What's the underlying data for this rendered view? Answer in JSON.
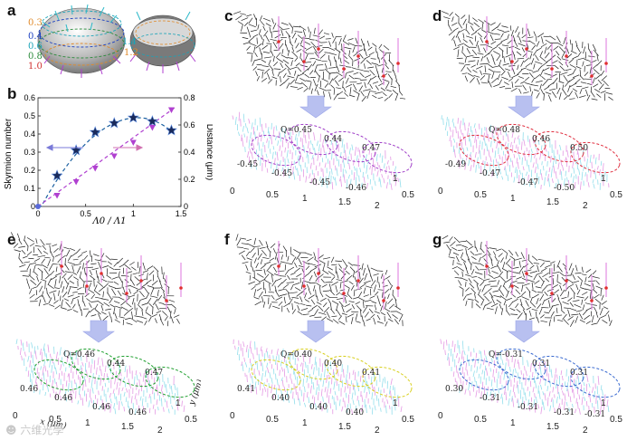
{
  "panels": {
    "a": "a",
    "b": "b",
    "c": "c",
    "d": "d",
    "e": "e",
    "f": "f",
    "g": "g"
  },
  "panel_a": {
    "ticks_left": [
      "0.3",
      "0.4",
      "0.6",
      "0.8",
      "1.0"
    ],
    "ticks_right": [
      "1.4",
      "1.2"
    ],
    "tick_colors": {
      "0.3": "#e08a2a",
      "0.4": "#1a3fc0",
      "0.6": "#1aa3b8",
      "0.8": "#2a8a3a",
      "1.0": "#d03030",
      "1.4": "#1aa3b8",
      "1.2": "#e08a2a"
    }
  },
  "chart_data": {
    "type": "line",
    "title": "",
    "xlabel": "Λ0 / Λ1",
    "ylabel": "Skyrmion number",
    "y2label": "Distance (μm)",
    "xlim": [
      0,
      1.5
    ],
    "ylim": [
      0,
      0.6
    ],
    "y2lim": [
      0,
      0.8
    ],
    "xticks": [
      "0",
      "0.5",
      "1",
      "1.5"
    ],
    "yticks": [
      "0",
      "0.1",
      "0.2",
      "0.3",
      "0.4",
      "0.5",
      "0.6"
    ],
    "y2ticks": [
      "0",
      "0.2",
      "0.4",
      "0.6",
      "0.8"
    ],
    "series": [
      {
        "name": "Skyrmion number",
        "axis": "left",
        "marker": "star",
        "color": "#1a3a8a",
        "x": [
          0,
          0.2,
          0.4,
          0.6,
          0.8,
          1.0,
          1.2,
          1.4
        ],
        "y": [
          0,
          0.17,
          0.31,
          0.41,
          0.46,
          0.49,
          0.47,
          0.42
        ]
      },
      {
        "name": "Distance",
        "axis": "right",
        "marker": "triangle",
        "color": "#b040d0",
        "x": [
          0,
          0.2,
          0.4,
          0.6,
          0.8,
          1.0,
          1.2,
          1.4
        ],
        "y": [
          0,
          0.08,
          0.18,
          0.28,
          0.37,
          0.47,
          0.58,
          0.71
        ]
      }
    ]
  },
  "panel_c": {
    "labels": [
      "Q=0.45",
      "0.44",
      "0.47",
      "-0.45",
      "-0.45",
      "-0.45",
      "-0.46"
    ]
  },
  "panel_d": {
    "labels": [
      "Q=0.48",
      "0.46",
      "0.50",
      "-0.49",
      "-0.47",
      "-0.47",
      "-0.50"
    ]
  },
  "panel_e": {
    "labels": [
      "Q=0.46",
      "0.44",
      "0.47",
      "0.46",
      "0.46",
      "0.46",
      "0.46"
    ]
  },
  "panel_f": {
    "labels": [
      "Q=0.40",
      "0.40",
      "0.41",
      "0.41",
      "0.40",
      "0.40",
      "0.40"
    ]
  },
  "panel_g": {
    "labels": [
      "Q=-0.31",
      "0.31",
      "0.31",
      "0.30",
      "-0.31",
      "-0.31",
      "-0.31",
      "-0.31"
    ]
  },
  "axes3d": {
    "x_ticks": [
      "0",
      "0.5",
      "1",
      "1.5",
      "2"
    ],
    "y_ticks": [
      "0.5",
      "1"
    ],
    "x_label": "x (μm)",
    "y_label": "y (μm)"
  },
  "watermark": "六维光學"
}
